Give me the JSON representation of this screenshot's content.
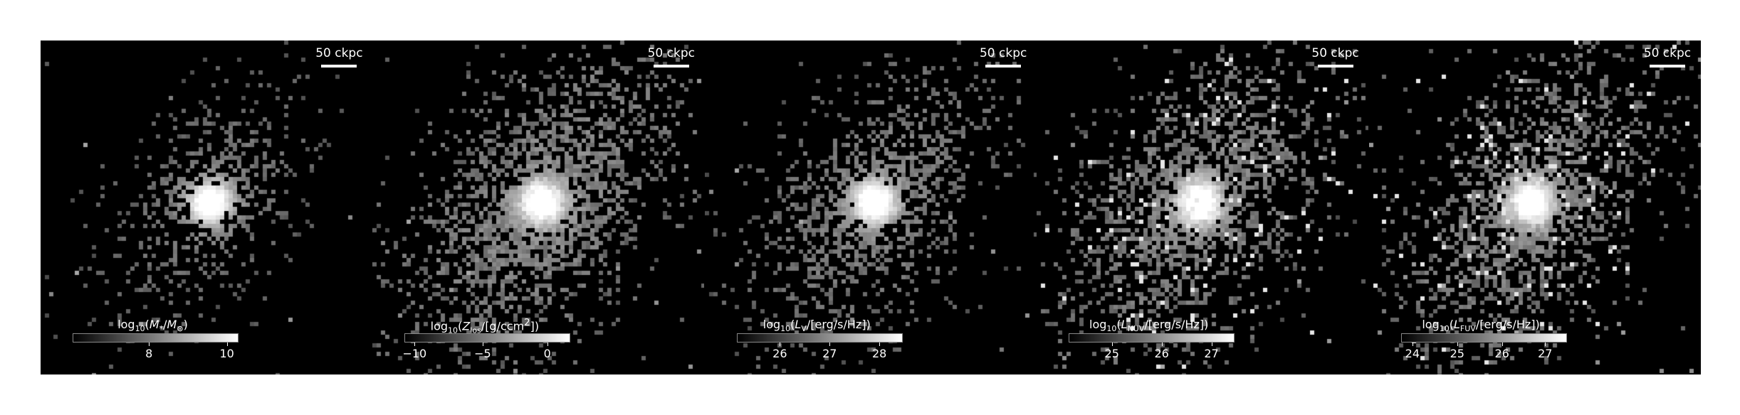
{
  "scale_label": "50 ckpc",
  "panels": [
    {
      "label_html": "log<sub>10</sub>(<i>M</i><sub>*</sub>/<i>M</i><sub>⊙</sub>)",
      "ticks": [
        "8",
        "10"
      ],
      "tick_frac": [
        0.46,
        0.93
      ],
      "spread": 0.45,
      "density": 0.45
    },
    {
      "label_html": "log<sub>10</sub>(<i>Z</i><sub>los</sub>/[g/ccm<sup>2</sup>])",
      "ticks": [
        "−10",
        "−5",
        "0"
      ],
      "tick_frac": [
        0.06,
        0.47,
        0.86
      ],
      "spread": 0.85,
      "density": 0.75
    },
    {
      "label_html": "log<sub>10</sub>(<i>L</i><sub>V</sub>/[erg/s/Hz])",
      "ticks": [
        "26",
        "27",
        "28"
      ],
      "tick_frac": [
        0.26,
        0.56,
        0.86
      ],
      "spread": 0.7,
      "density": 0.6
    },
    {
      "label_html": "log<sub>10</sub>(<i>L</i><sub>NUV</sub>/[erg/s/Hz])",
      "ticks": [
        "25",
        "26",
        "27"
      ],
      "tick_frac": [
        0.26,
        0.56,
        0.86
      ],
      "spread": 0.85,
      "density": 0.7
    },
    {
      "label_html": "log<sub>10</sub>(<i>L</i><sub>FUV</sub>/[erg/s/Hz])",
      "ticks": [
        "24",
        "25",
        "26",
        "27"
      ],
      "tick_frac": [
        0.07,
        0.34,
        0.61,
        0.87
      ],
      "spread": 0.85,
      "density": 0.7
    }
  ]
}
